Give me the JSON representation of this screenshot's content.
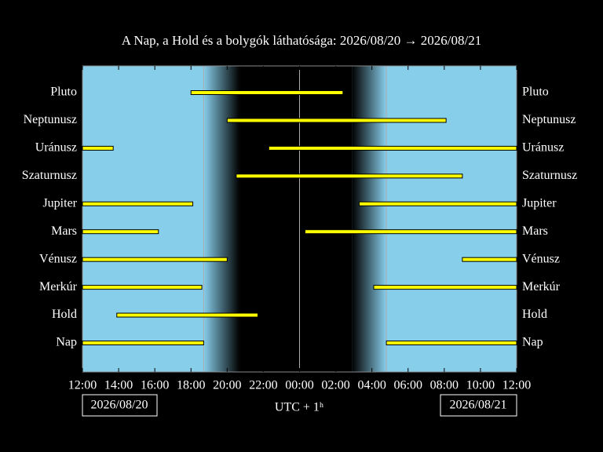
{
  "chart_data": {
    "type": "visibility",
    "title": "A Nap, a Hold és a bolygók láthatósága: 2026/08/20 → 2026/08/21",
    "xlabel": "UTC + 1ʰ",
    "start_date": "2026/08/20",
    "end_date": "2026/08/21",
    "xlim": [
      0,
      24
    ],
    "xticks": [
      {
        "value": 0,
        "label": "12:00"
      },
      {
        "value": 2,
        "label": "14:00"
      },
      {
        "value": 4,
        "label": "16:00"
      },
      {
        "value": 6,
        "label": "18:00"
      },
      {
        "value": 8,
        "label": "20:00"
      },
      {
        "value": 10,
        "label": "22:00"
      },
      {
        "value": 12,
        "label": "00:00"
      },
      {
        "value": 14,
        "label": "02:00"
      },
      {
        "value": 16,
        "label": "04:00"
      },
      {
        "value": 18,
        "label": "06:00"
      },
      {
        "value": 20,
        "label": "08:00"
      },
      {
        "value": 22,
        "label": "10:00"
      },
      {
        "value": 24,
        "label": "12:00"
      }
    ],
    "sunset": 6.7,
    "dark_start": 8.7,
    "midnight": 12,
    "dark_end": 14.9,
    "sunrise": 16.8,
    "day_color": "#87ceeb",
    "bar_color": "#ffff00",
    "rows": [
      {
        "name": "Pluto",
        "segments": [
          [
            6.0,
            14.4
          ]
        ]
      },
      {
        "name": "Neptunusz",
        "segments": [
          [
            8.0,
            20.1
          ]
        ]
      },
      {
        "name": "Uránusz",
        "segments": [
          [
            0,
            1.7
          ],
          [
            10.3,
            24
          ]
        ]
      },
      {
        "name": "Szaturnusz",
        "segments": [
          [
            8.5,
            21.0
          ]
        ]
      },
      {
        "name": "Jupiter",
        "segments": [
          [
            0,
            6.1
          ],
          [
            15.3,
            24
          ]
        ]
      },
      {
        "name": "Mars",
        "segments": [
          [
            0,
            4.2
          ],
          [
            12.3,
            24
          ]
        ]
      },
      {
        "name": "Vénusz",
        "segments": [
          [
            0,
            8.0
          ],
          [
            21.0,
            24
          ]
        ]
      },
      {
        "name": "Merkúr",
        "segments": [
          [
            0,
            6.6
          ],
          [
            16.1,
            24
          ]
        ]
      },
      {
        "name": "Hold",
        "segments": [
          [
            1.9,
            9.7
          ]
        ]
      },
      {
        "name": "Nap",
        "segments": [
          [
            0,
            6.7
          ],
          [
            16.8,
            24
          ]
        ]
      }
    ]
  }
}
